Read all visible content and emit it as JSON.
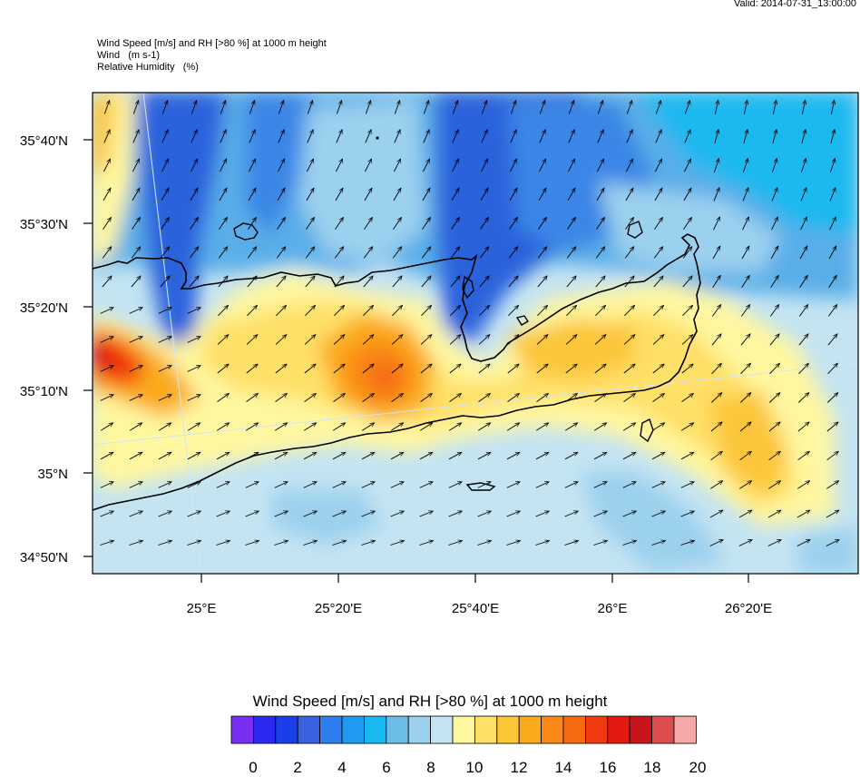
{
  "valid": "Valid: 2014-07-31_13:00:00",
  "titles": {
    "line1": "Wind Speed [m/s] and RH [>80 %] at 1000 m height",
    "line2": "Wind   (m s-1)",
    "line3": "Relative Humidity   (%)"
  },
  "lat_labels": [
    "35°40'N",
    "35°30'N",
    "35°20'N",
    "35°10'N",
    "35°N",
    "34°50'N"
  ],
  "lon_labels": [
    "25°E",
    "25°20'E",
    "25°40'E",
    "26°E",
    "26°20'E"
  ],
  "colorbar": {
    "title": "Wind Speed [m/s] and RH [>80 %] at 1000 m height",
    "labels": [
      "0",
      "2",
      "4",
      "6",
      "8",
      "10",
      "12",
      "14",
      "16",
      "18",
      "20"
    ],
    "colors": [
      "#7a2ef0",
      "#2b28f0",
      "#1a3fe8",
      "#3a62e0",
      "#2f7ef0",
      "#1f9bf2",
      "#1ab8f0",
      "#6cbde8",
      "#9bd0ee",
      "#c4e4f2",
      "#fff7a0",
      "#ffe067",
      "#fcc63a",
      "#fbaa1e",
      "#f98816",
      "#f66b12",
      "#f23a10",
      "#e31a10",
      "#c8141a",
      "#de4e4e",
      "#f4a8a8"
    ]
  },
  "palette": {
    "light_blue": "#c4e4f2",
    "pale_blue": "#9bd0ee",
    "mid_blue": "#5aaee8",
    "blue": "#3a86e6",
    "deep_blue": "#2a62dc",
    "yellow": "#fff7a0",
    "gold": "#fcc63a",
    "orange": "#f98816",
    "red": "#e31a10",
    "cyan": "#1ab8f0"
  }
}
